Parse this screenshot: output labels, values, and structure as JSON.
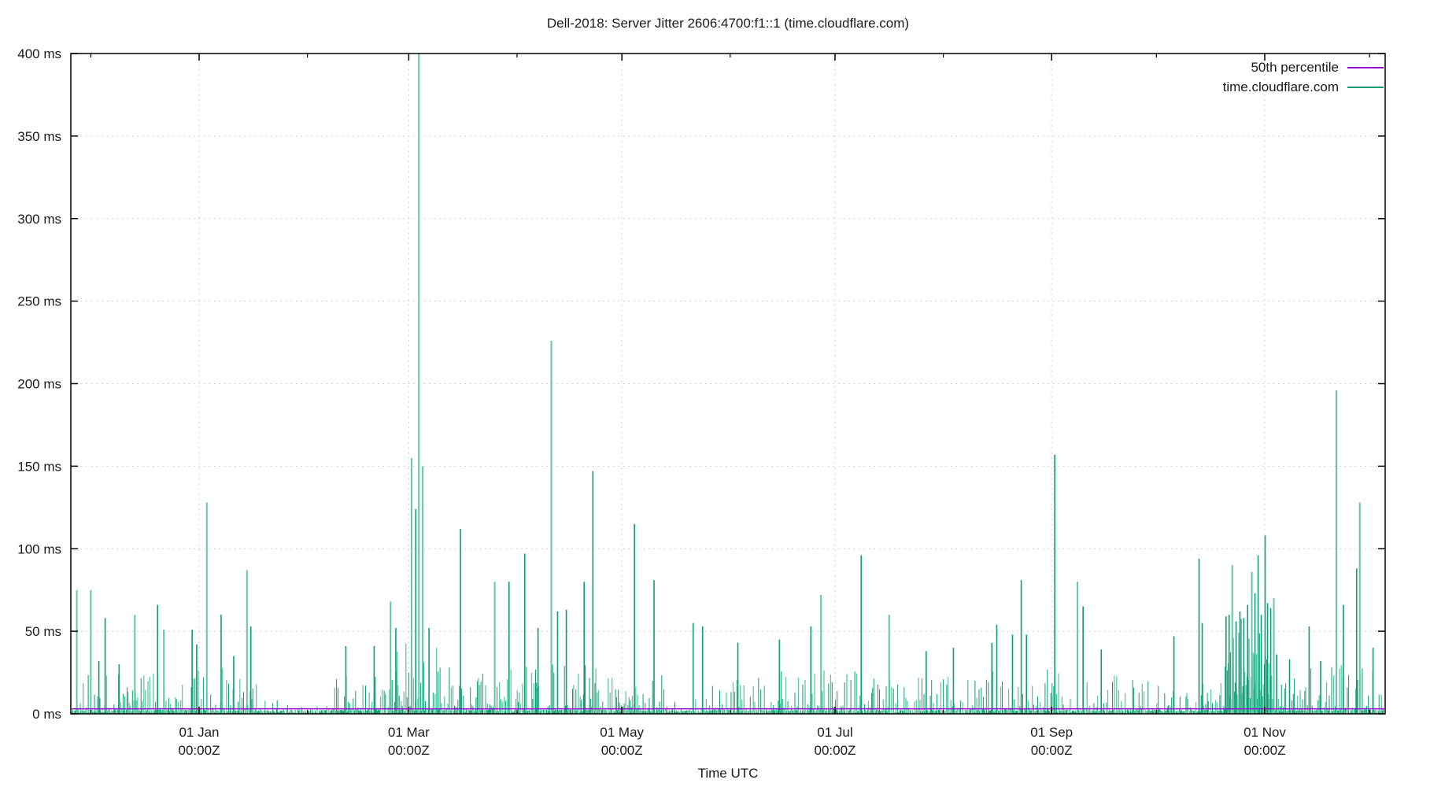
{
  "title": "Dell-2018: Server Jitter 2606:4700:f1::1 (time.cloudflare.com)",
  "axes": {
    "xlabel": "Time UTC",
    "ylim_ms": [
      0,
      400
    ],
    "y_ticks": [
      {
        "ms": 0,
        "label": "0 ms"
      },
      {
        "ms": 50,
        "label": "50 ms"
      },
      {
        "ms": 100,
        "label": "100 ms"
      },
      {
        "ms": 150,
        "label": "150 ms"
      },
      {
        "ms": 200,
        "label": "200 ms"
      },
      {
        "ms": 250,
        "label": "250 ms"
      },
      {
        "ms": 300,
        "label": "300 ms"
      },
      {
        "ms": 350,
        "label": "350 ms"
      },
      {
        "ms": 400,
        "label": "400 ms"
      }
    ],
    "x_domain_days_from_jan1": [
      -36.7,
      339.5
    ],
    "x_major_ticks": [
      {
        "day": 0,
        "line1": "01 Jan",
        "line2": "00:00Z"
      },
      {
        "day": 60,
        "line1": "01 Mar",
        "line2": "00:00Z"
      },
      {
        "day": 121,
        "line1": "01 May",
        "line2": "00:00Z"
      },
      {
        "day": 182,
        "line1": "01 Jul",
        "line2": "00:00Z"
      },
      {
        "day": 244,
        "line1": "01 Sep",
        "line2": "00:00Z"
      },
      {
        "day": 305,
        "line1": "01 Nov",
        "line2": "00:00Z"
      }
    ],
    "x_minor_ticks_days": [
      -31,
      31,
      91,
      152,
      213,
      274,
      335
    ],
    "grid": "dotted"
  },
  "legend": [
    {
      "label": "50th percentile",
      "color": "#9400d3"
    },
    {
      "label": "time.cloudflare.com",
      "color": "#0e9c74"
    }
  ],
  "colors": {
    "background": "#ffffff",
    "axis": "#000000",
    "grid": "#c4c4c4",
    "text": "#1a1a1a",
    "series_green_dark": "#0e9c74",
    "series_green_light": "#63c6a4",
    "percentile_purple": "#9400d3"
  },
  "chart_data": {
    "type": "line-impulses-time-series",
    "title": "Dell-2018: Server Jitter 2606:4700:f1::1 (time.cloudflare.com)",
    "xlabel": "Time UTC",
    "ylabel": "ms",
    "ylim": [
      0,
      400
    ],
    "legend_position": "top-right-inside",
    "series": [
      {
        "name": "50th percentile",
        "style": "hline",
        "value_ms": 3,
        "color": "#9400d3"
      },
      {
        "name": "time.cloudflare.com",
        "style": "impulses",
        "color_dark": "#0e9c74",
        "color_light": "#63c6a4",
        "seed": 1337,
        "major_spikes_day_ms_shade": [
          [
            -35.0,
            75,
            1
          ],
          [
            -31.0,
            75,
            1
          ],
          [
            -28.7,
            32,
            0
          ],
          [
            -26.9,
            58,
            0
          ],
          [
            -22.9,
            30,
            0
          ],
          [
            -18.4,
            60,
            1
          ],
          [
            -11.9,
            66,
            0
          ],
          [
            -10.1,
            51,
            1
          ],
          [
            -2.0,
            51,
            0
          ],
          [
            -0.7,
            42,
            0
          ],
          [
            2.2,
            128,
            1
          ],
          [
            6.3,
            60,
            0
          ],
          [
            9.9,
            35,
            0
          ],
          [
            13.7,
            87,
            1
          ],
          [
            14.8,
            53,
            0
          ],
          [
            42.0,
            41,
            0
          ],
          [
            50.1,
            41,
            0
          ],
          [
            54.8,
            68,
            1
          ],
          [
            56.3,
            52,
            0
          ],
          [
            60.8,
            155,
            1
          ],
          [
            62.0,
            124,
            0
          ],
          [
            62.9,
            410,
            1
          ],
          [
            64.0,
            150,
            1
          ],
          [
            65.8,
            52,
            0
          ],
          [
            74.8,
            112,
            0
          ],
          [
            84.6,
            80,
            1
          ],
          [
            88.7,
            80,
            0
          ],
          [
            93.2,
            97,
            0
          ],
          [
            97.0,
            52,
            0
          ],
          [
            100.8,
            226,
            1
          ],
          [
            102.6,
            62,
            0
          ],
          [
            105.1,
            63,
            0
          ],
          [
            110.2,
            80,
            0
          ],
          [
            112.7,
            147,
            0
          ],
          [
            124.6,
            115,
            0
          ],
          [
            130.2,
            81,
            0
          ],
          [
            141.4,
            55,
            0
          ],
          [
            144.1,
            53,
            0
          ],
          [
            154.2,
            43,
            0
          ],
          [
            166.1,
            45,
            0
          ],
          [
            175.1,
            53,
            0
          ],
          [
            178.0,
            72,
            1
          ],
          [
            189.5,
            96,
            0
          ],
          [
            197.5,
            60,
            1
          ],
          [
            208.1,
            38,
            0
          ],
          [
            215.9,
            40,
            0
          ],
          [
            226.9,
            43,
            0
          ],
          [
            228.3,
            54,
            0
          ],
          [
            232.8,
            48,
            0
          ],
          [
            235.3,
            81,
            0
          ],
          [
            236.8,
            48,
            0
          ],
          [
            244.9,
            157,
            0
          ],
          [
            251.4,
            80,
            1
          ],
          [
            253.0,
            65,
            0
          ],
          [
            258.2,
            39,
            0
          ],
          [
            279.0,
            47,
            0
          ],
          [
            286.2,
            94,
            0
          ],
          [
            287.1,
            55,
            0
          ],
          [
            293.9,
            59,
            0
          ],
          [
            294.8,
            60,
            0
          ],
          [
            295.7,
            90,
            1
          ],
          [
            296.8,
            56,
            0
          ],
          [
            297.9,
            62,
            0
          ],
          [
            299.0,
            58,
            0
          ],
          [
            300.1,
            66,
            0
          ],
          [
            301.3,
            86,
            1
          ],
          [
            302.2,
            73,
            0
          ],
          [
            303.1,
            96,
            0
          ],
          [
            304.0,
            60,
            0
          ],
          [
            305.1,
            108,
            0
          ],
          [
            305.8,
            67,
            0
          ],
          [
            306.7,
            64,
            0
          ],
          [
            307.6,
            70,
            1
          ],
          [
            308.4,
            36,
            0
          ],
          [
            312.1,
            33,
            0
          ],
          [
            317.7,
            53,
            0
          ],
          [
            321.0,
            32,
            0
          ],
          [
            325.5,
            196,
            1
          ],
          [
            327.5,
            66,
            0
          ],
          [
            331.3,
            88,
            0
          ],
          [
            332.2,
            128,
            1
          ],
          [
            336.0,
            40,
            0
          ]
        ],
        "noise_regions": [
          {
            "d0": -36.2,
            "d1": 17.3,
            "step": 0.5,
            "min": 2,
            "max": 30,
            "pw": 2.2
          },
          {
            "d0": 17.3,
            "d1": 36.4,
            "step": 1.4,
            "min": 1,
            "max": 9,
            "pw": 2.4
          },
          {
            "d0": 36.4,
            "d1": 56.6,
            "step": 0.55,
            "min": 2,
            "max": 26,
            "pw": 2.4
          },
          {
            "d0": 56.6,
            "d1": 68.9,
            "step": 0.4,
            "min": 3,
            "max": 45,
            "pw": 2.2
          },
          {
            "d0": 68.9,
            "d1": 134.0,
            "step": 0.45,
            "min": 2,
            "max": 30,
            "pw": 2.4
          },
          {
            "d0": 134.0,
            "d1": 140.8,
            "step": 1.0,
            "min": 1,
            "max": 8,
            "pw": 2.4
          },
          {
            "d0": 140.8,
            "d1": 165.5,
            "step": 0.6,
            "min": 2,
            "max": 22,
            "pw": 2.4
          },
          {
            "d0": 165.5,
            "d1": 244.0,
            "step": 0.5,
            "min": 2,
            "max": 28,
            "pw": 2.4
          },
          {
            "d0": 244.0,
            "d1": 267.6,
            "step": 0.55,
            "min": 2,
            "max": 25,
            "pw": 2.4
          },
          {
            "d0": 267.6,
            "d1": 293.4,
            "step": 0.38,
            "min": 1.5,
            "max": 20,
            "pw": 2.6
          },
          {
            "d0": 293.4,
            "d1": 308.0,
            "step": 0.3,
            "min": 8,
            "max": 58,
            "pw": 1.6
          },
          {
            "d0": 308.0,
            "d1": 338.8,
            "step": 0.5,
            "min": 2,
            "max": 30,
            "pw": 2.4
          }
        ],
        "baseline_fuzz": {
          "d0": -36.4,
          "d1": 339.0,
          "step": 0.33,
          "min": 0.4,
          "max": 2.8
        }
      }
    ]
  }
}
